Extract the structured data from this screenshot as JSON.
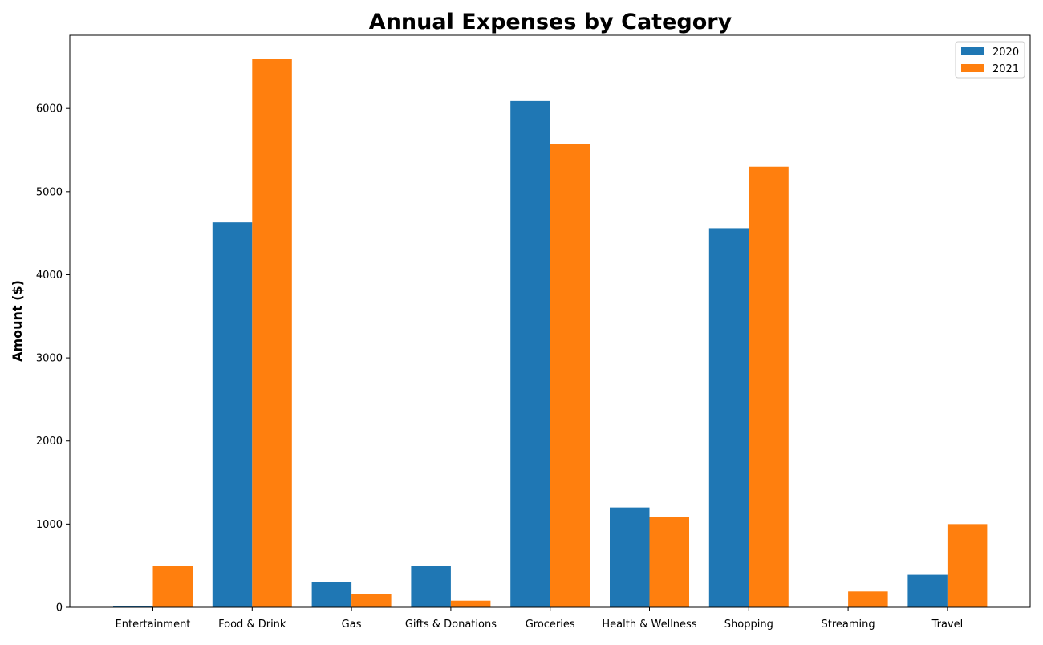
{
  "chart_data": {
    "type": "bar",
    "title": "Annual Expenses by Category",
    "xlabel": "",
    "ylabel": "Amount ($)",
    "categories": [
      "Entertainment",
      "Food & Drink",
      "Gas",
      "Gifts & Donations",
      "Groceries",
      "Health & Wellness",
      "Shopping",
      "Streaming",
      "Travel"
    ],
    "series": [
      {
        "name": "2020",
        "color": "#1f77b4",
        "values": [
          15,
          4630,
          300,
          500,
          6090,
          1200,
          4560,
          0,
          390
        ]
      },
      {
        "name": "2021",
        "color": "#ff7f0e",
        "values": [
          500,
          6600,
          160,
          80,
          5570,
          1090,
          5300,
          190,
          1000
        ]
      }
    ],
    "ylim": [
      0,
      6880
    ],
    "yticks": [
      0,
      1000,
      2000,
      3000,
      4000,
      5000,
      6000
    ],
    "legend_position": "top-right",
    "grid": false
  }
}
